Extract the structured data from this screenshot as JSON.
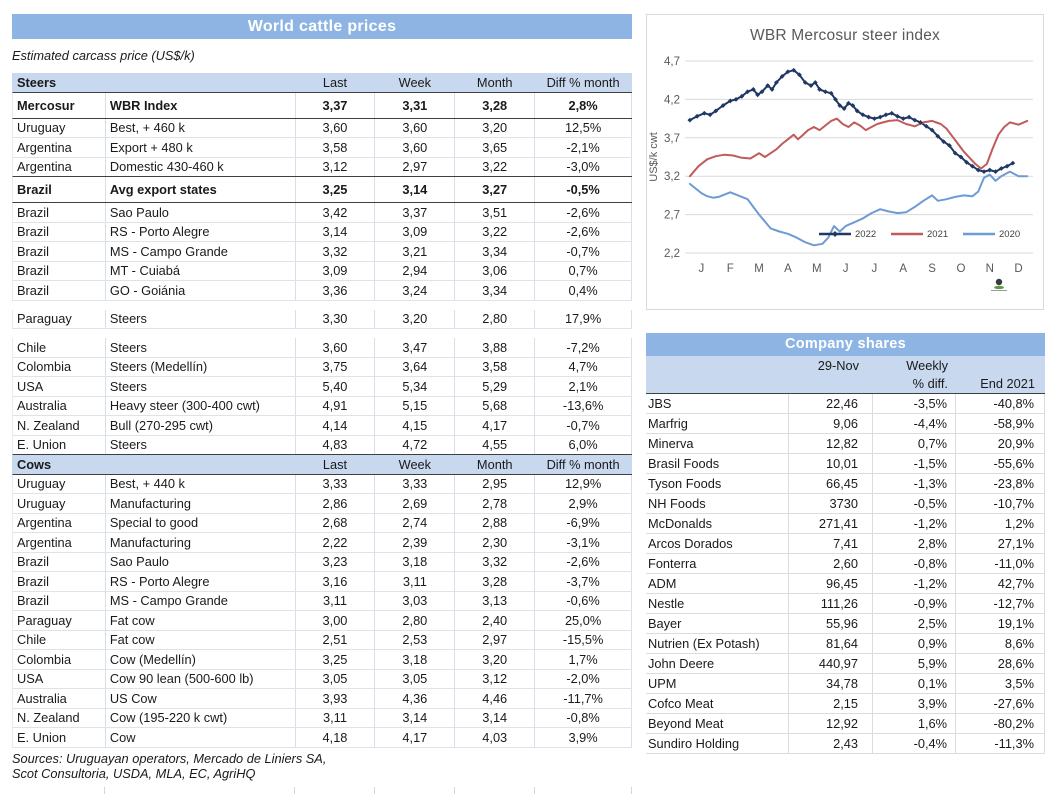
{
  "left": {
    "title": "World cattle prices",
    "subtitle": "Estimated carcass price (US$/k)",
    "steers": {
      "label": "Steers",
      "headers": [
        "Last",
        "Week",
        "Month",
        "Diff % month"
      ],
      "rows": [
        {
          "c": [
            "Mercosur",
            "WBR Index",
            "3,37",
            "3,31",
            "3,28",
            "2,8%"
          ],
          "bold": true,
          "darkb": true
        },
        {
          "c": [
            "Uruguay",
            "Best, + 460 k",
            "3,60",
            "3,60",
            "3,20",
            "12,5%"
          ]
        },
        {
          "c": [
            "Argentina",
            "Export + 480 k",
            "3,58",
            "3,60",
            "3,65",
            "-2,1%"
          ]
        },
        {
          "c": [
            "Argentina",
            "Domestic 430-460 k",
            "3,12",
            "2,97",
            "3,22",
            "-3,0%"
          ],
          "darkb": true
        },
        {
          "c": [
            "Brazil",
            "Avg export states",
            "3,25",
            "3,14",
            "3,27",
            "-0,5%"
          ],
          "bold": true,
          "darkb": true
        },
        {
          "c": [
            "Brazil",
            "Sao Paulo",
            "3,42",
            "3,37",
            "3,51",
            "-2,6%"
          ]
        },
        {
          "c": [
            "Brazil",
            "RS - Porto Alegre",
            "3,14",
            "3,09",
            "3,22",
            "-2,6%"
          ]
        },
        {
          "c": [
            "Brazil",
            "MS - Campo Grande",
            "3,32",
            "3,21",
            "3,34",
            "-0,7%"
          ]
        },
        {
          "c": [
            "Brazil",
            "MT - Cuiabá",
            "3,09",
            "2,94",
            "3,06",
            "0,7%"
          ]
        },
        {
          "c": [
            "Brazil",
            "GO - Goiánia",
            "3,36",
            "3,24",
            "3,34",
            "0,4%"
          ]
        },
        {
          "c": [
            "Paraguay",
            "Steers",
            "3,30",
            "3,20",
            "2,80",
            "17,9%"
          ],
          "gap": true
        },
        {
          "c": [
            "Chile",
            "Steers",
            "3,60",
            "3,47",
            "3,88",
            "-7,2%"
          ],
          "gap": true
        },
        {
          "c": [
            "Colombia",
            "Steers (Medellín)",
            "3,75",
            "3,64",
            "3,58",
            "4,7%"
          ]
        },
        {
          "c": [
            "USA",
            "Steers",
            "5,40",
            "5,34",
            "5,29",
            "2,1%"
          ]
        },
        {
          "c": [
            "Australia",
            "Heavy steer (300-400 cwt)",
            "4,91",
            "5,15",
            "5,68",
            "-13,6%"
          ]
        },
        {
          "c": [
            "N. Zealand",
            "Bull (270-295 cwt)",
            "4,14",
            "4,15",
            "4,17",
            "-0,7%"
          ]
        },
        {
          "c": [
            "E. Union",
            "Steers",
            "4,83",
            "4,72",
            "4,55",
            "6,0%"
          ],
          "darkb": true
        }
      ]
    },
    "cows": {
      "label": "Cows",
      "headers": [
        "Last",
        "Week",
        "Month",
        "Diff % month"
      ],
      "rows": [
        {
          "c": [
            "Uruguay",
            "Best, + 440 k",
            "3,33",
            "3,33",
            "2,95",
            "12,9%"
          ]
        },
        {
          "c": [
            "Uruguay",
            "Manufacturing",
            "2,86",
            "2,69",
            "2,78",
            "2,9%"
          ]
        },
        {
          "c": [
            "Argentina",
            "Special to good",
            "2,68",
            "2,74",
            "2,88",
            "-6,9%"
          ]
        },
        {
          "c": [
            "Argentina",
            "Manufacturing",
            "2,22",
            "2,39",
            "2,30",
            "-3,1%"
          ]
        },
        {
          "c": [
            "Brazil",
            "Sao Paulo",
            "3,23",
            "3,18",
            "3,32",
            "-2,6%"
          ]
        },
        {
          "c": [
            "Brazil",
            "RS - Porto Alegre",
            "3,16",
            "3,11",
            "3,28",
            "-3,7%"
          ]
        },
        {
          "c": [
            "Brazil",
            "MS - Campo Grande",
            "3,11",
            "3,03",
            "3,13",
            "-0,6%"
          ]
        },
        {
          "c": [
            "Paraguay",
            "Fat cow",
            "3,00",
            "2,80",
            "2,40",
            "25,0%"
          ]
        },
        {
          "c": [
            "Chile",
            "Fat cow",
            "2,51",
            "2,53",
            "2,97",
            "-15,5%"
          ]
        },
        {
          "c": [
            "Colombia",
            "Cow (Medellín)",
            "3,25",
            "3,18",
            "3,20",
            "1,7%"
          ]
        },
        {
          "c": [
            "USA",
            "Cow 90 lean (500-600 lb)",
            "3,05",
            "3,05",
            "3,12",
            "-2,0%"
          ]
        },
        {
          "c": [
            "Australia",
            "US Cow",
            "3,93",
            "4,36",
            "4,46",
            "-11,7%"
          ]
        },
        {
          "c": [
            "N. Zealand",
            "Cow (195-220 k cwt)",
            "3,11",
            "3,14",
            "3,14",
            "-0,8%"
          ]
        },
        {
          "c": [
            "E. Union",
            "Cow",
            "4,18",
            "4,17",
            "4,03",
            "3,9%"
          ]
        }
      ]
    },
    "sources_line1": "Sources: Uruguayan operators, Mercado de Liniers SA,",
    "sources_line2": "Scot Consultoria, USDA, MLA, EC, AgriHQ"
  },
  "chart_data": {
    "type": "line",
    "title": "WBR Mercosur steer index",
    "ylabel": "US$/k cwt",
    "ylim": [
      2.2,
      4.7
    ],
    "yticks": [
      {
        "v": 4.7,
        "label": "4,7"
      },
      {
        "v": 4.2,
        "label": "4,2"
      },
      {
        "v": 3.7,
        "label": "3,7"
      },
      {
        "v": 3.2,
        "label": "3,2"
      },
      {
        "v": 2.7,
        "label": "2,7"
      },
      {
        "v": 2.2,
        "label": "2,2"
      }
    ],
    "xticklabels": [
      "J",
      "F",
      "M",
      "A",
      "M",
      "J",
      "J",
      "A",
      "S",
      "O",
      "N",
      "D"
    ],
    "grid": true,
    "legend_position": "inside-bottom-right",
    "series": [
      {
        "name": "2022",
        "color": "#1F3864",
        "marker": true,
        "points": [
          [
            0.1,
            3.93
          ],
          [
            0.35,
            3.98
          ],
          [
            0.6,
            4.02
          ],
          [
            0.8,
            4.0
          ],
          [
            1.0,
            4.05
          ],
          [
            1.25,
            4.12
          ],
          [
            1.5,
            4.18
          ],
          [
            1.7,
            4.2
          ],
          [
            1.9,
            4.24
          ],
          [
            2.1,
            4.3
          ],
          [
            2.3,
            4.33
          ],
          [
            2.45,
            4.26
          ],
          [
            2.6,
            4.3
          ],
          [
            2.8,
            4.38
          ],
          [
            2.95,
            4.33
          ],
          [
            3.1,
            4.42
          ],
          [
            3.3,
            4.5
          ],
          [
            3.5,
            4.56
          ],
          [
            3.7,
            4.58
          ],
          [
            3.9,
            4.52
          ],
          [
            4.1,
            4.42
          ],
          [
            4.3,
            4.38
          ],
          [
            4.45,
            4.42
          ],
          [
            4.6,
            4.33
          ],
          [
            4.8,
            4.3
          ],
          [
            5.0,
            4.28
          ],
          [
            5.15,
            4.2
          ],
          [
            5.3,
            4.12
          ],
          [
            5.45,
            4.08
          ],
          [
            5.6,
            4.15
          ],
          [
            5.75,
            4.12
          ],
          [
            5.9,
            4.05
          ],
          [
            6.1,
            4.0
          ],
          [
            6.3,
            3.97
          ],
          [
            6.5,
            3.95
          ],
          [
            6.7,
            3.97
          ],
          [
            6.9,
            4.0
          ],
          [
            7.1,
            4.02
          ],
          [
            7.3,
            3.98
          ],
          [
            7.5,
            3.95
          ],
          [
            7.7,
            3.97
          ],
          [
            7.9,
            3.93
          ],
          [
            8.1,
            3.9
          ],
          [
            8.3,
            3.85
          ],
          [
            8.5,
            3.8
          ],
          [
            8.7,
            3.72
          ],
          [
            8.9,
            3.65
          ],
          [
            9.1,
            3.6
          ],
          [
            9.3,
            3.5
          ],
          [
            9.5,
            3.45
          ],
          [
            9.7,
            3.38
          ],
          [
            9.9,
            3.33
          ],
          [
            10.1,
            3.28
          ],
          [
            10.3,
            3.26
          ],
          [
            10.5,
            3.28
          ],
          [
            10.7,
            3.26
          ],
          [
            10.9,
            3.3
          ],
          [
            11.1,
            3.33
          ],
          [
            11.3,
            3.37
          ]
        ]
      },
      {
        "name": "2021",
        "color": "#C05B5B",
        "marker": false,
        "points": [
          [
            0.1,
            3.2
          ],
          [
            0.4,
            3.33
          ],
          [
            0.7,
            3.42
          ],
          [
            1.0,
            3.46
          ],
          [
            1.3,
            3.48
          ],
          [
            1.6,
            3.47
          ],
          [
            1.9,
            3.44
          ],
          [
            2.2,
            3.43
          ],
          [
            2.5,
            3.5
          ],
          [
            2.7,
            3.45
          ],
          [
            2.9,
            3.5
          ],
          [
            3.1,
            3.55
          ],
          [
            3.3,
            3.62
          ],
          [
            3.5,
            3.68
          ],
          [
            3.7,
            3.74
          ],
          [
            3.85,
            3.68
          ],
          [
            4.0,
            3.73
          ],
          [
            4.2,
            3.8
          ],
          [
            4.4,
            3.84
          ],
          [
            4.6,
            3.8
          ],
          [
            4.8,
            3.86
          ],
          [
            5.0,
            3.92
          ],
          [
            5.2,
            3.95
          ],
          [
            5.4,
            3.88
          ],
          [
            5.6,
            3.84
          ],
          [
            5.8,
            3.9
          ],
          [
            6.0,
            3.86
          ],
          [
            6.2,
            3.8
          ],
          [
            6.4,
            3.84
          ],
          [
            6.6,
            3.88
          ],
          [
            6.8,
            3.9
          ],
          [
            7.0,
            3.92
          ],
          [
            7.3,
            3.93
          ],
          [
            7.6,
            3.88
          ],
          [
            7.9,
            3.85
          ],
          [
            8.2,
            3.9
          ],
          [
            8.5,
            3.92
          ],
          [
            8.8,
            3.88
          ],
          [
            9.0,
            3.82
          ],
          [
            9.2,
            3.72
          ],
          [
            9.4,
            3.62
          ],
          [
            9.6,
            3.52
          ],
          [
            9.8,
            3.44
          ],
          [
            10.0,
            3.36
          ],
          [
            10.2,
            3.3
          ],
          [
            10.4,
            3.36
          ],
          [
            10.6,
            3.56
          ],
          [
            10.8,
            3.74
          ],
          [
            11.0,
            3.84
          ],
          [
            11.2,
            3.9
          ],
          [
            11.5,
            3.87
          ],
          [
            11.8,
            3.92
          ]
        ]
      },
      {
        "name": "2020",
        "color": "#6D9BD3",
        "marker": false,
        "points": [
          [
            0.1,
            3.1
          ],
          [
            0.3,
            3.04
          ],
          [
            0.5,
            2.98
          ],
          [
            0.7,
            2.94
          ],
          [
            0.9,
            2.92
          ],
          [
            1.1,
            2.93
          ],
          [
            1.3,
            2.96
          ],
          [
            1.5,
            2.99
          ],
          [
            1.7,
            2.96
          ],
          [
            1.9,
            2.93
          ],
          [
            2.1,
            2.9
          ],
          [
            2.3,
            2.8
          ],
          [
            2.5,
            2.7
          ],
          [
            2.9,
            2.52
          ],
          [
            3.2,
            2.48
          ],
          [
            3.5,
            2.45
          ],
          [
            3.8,
            2.4
          ],
          [
            4.1,
            2.34
          ],
          [
            4.4,
            2.3
          ],
          [
            4.7,
            2.32
          ],
          [
            4.9,
            2.4
          ],
          [
            5.1,
            2.55
          ],
          [
            5.3,
            2.48
          ],
          [
            5.5,
            2.55
          ],
          [
            5.8,
            2.6
          ],
          [
            6.1,
            2.65
          ],
          [
            6.4,
            2.72
          ],
          [
            6.7,
            2.77
          ],
          [
            7.0,
            2.74
          ],
          [
            7.3,
            2.72
          ],
          [
            7.6,
            2.73
          ],
          [
            7.9,
            2.8
          ],
          [
            8.2,
            2.88
          ],
          [
            8.5,
            2.95
          ],
          [
            8.7,
            2.88
          ],
          [
            9.0,
            2.9
          ],
          [
            9.3,
            2.93
          ],
          [
            9.6,
            2.95
          ],
          [
            9.9,
            2.94
          ],
          [
            10.1,
            3.0
          ],
          [
            10.3,
            3.18
          ],
          [
            10.5,
            3.22
          ],
          [
            10.7,
            3.14
          ],
          [
            10.9,
            3.2
          ],
          [
            11.2,
            3.26
          ],
          [
            11.5,
            3.2
          ],
          [
            11.8,
            3.2
          ]
        ]
      }
    ]
  },
  "shares": {
    "title": "Company shares",
    "header": {
      "date": "29-Nov",
      "weekly_line1": "Weekly",
      "weekly_line2": "% diff.",
      "end": "End 2021"
    },
    "rows": [
      [
        "JBS",
        "22,46",
        "-3,5%",
        "-40,8%"
      ],
      [
        "Marfrig",
        "9,06",
        "-4,4%",
        "-58,9%"
      ],
      [
        "Minerva",
        "12,82",
        "0,7%",
        "20,9%"
      ],
      [
        "Brasil Foods",
        "10,01",
        "-1,5%",
        "-55,6%"
      ],
      [
        "Tyson Foods",
        "66,45",
        "-1,3%",
        "-23,8%"
      ],
      [
        "NH Foods",
        "3730",
        "-0,5%",
        "-10,7%"
      ],
      [
        "McDonalds",
        "271,41",
        "-1,2%",
        "1,2%"
      ],
      [
        "Arcos Dorados",
        "7,41",
        "2,8%",
        "27,1%"
      ],
      [
        "Fonterra",
        "2,60",
        "-0,8%",
        "-11,0%"
      ],
      [
        "ADM",
        "96,45",
        "-1,2%",
        "42,7%"
      ],
      [
        "Nestle",
        "111,26",
        "-0,9%",
        "-12,7%"
      ],
      [
        "Bayer",
        "55,96",
        "2,5%",
        "19,1%"
      ],
      [
        "Nutrien (Ex Potash)",
        "81,64",
        "0,9%",
        "8,6%"
      ],
      [
        "John Deere",
        "440,97",
        "5,9%",
        "28,6%"
      ],
      [
        "UPM",
        "34,78",
        "0,1%",
        "3,5%"
      ],
      [
        "Cofco Meat",
        "2,15",
        "3,9%",
        "-27,6%"
      ],
      [
        "Beyond Meat",
        "12,92",
        "1,6%",
        "-80,2%"
      ],
      [
        "Sundiro Holding",
        "2,43",
        "-0,4%",
        "-11,3%"
      ]
    ]
  },
  "colors": {
    "title_bar": "#8DB4E2",
    "section_header": "#C8D8EE",
    "dark_border": "#3f3f3f",
    "grid": "#d9d9d9",
    "chart_text": "#595959",
    "series_2022": "#1F3864",
    "series_2021": "#C05B5B",
    "series_2020": "#6D9BD3"
  }
}
